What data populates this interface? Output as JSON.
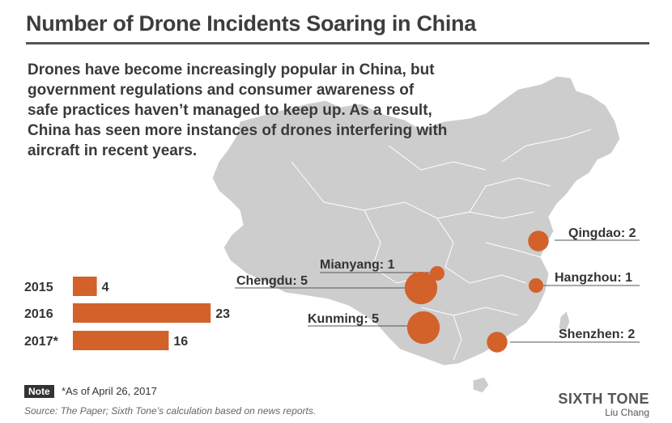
{
  "header": {
    "title": "Number of Drone Incidents Soaring in China",
    "subtitle": "Drones have become increasingly popular in China, but government regulations and consumer awareness of safe practices haven’t managed to keep up. As a result, China has seen more instances of drones interfering with aircraft in recent years."
  },
  "chart_data": [
    {
      "type": "bar",
      "orientation": "horizontal",
      "categories": [
        "2015",
        "2016",
        "2017*"
      ],
      "values": [
        4,
        23,
        16
      ],
      "color": "#D2622A"
    },
    {
      "type": "scatter",
      "kind": "bubble-map",
      "color": "#D2622A",
      "points": [
        {
          "city": "Qingdao",
          "value": 2,
          "label": "Qingdao: 2"
        },
        {
          "city": "Mianyang",
          "value": 1,
          "label": "Mianyang: 1"
        },
        {
          "city": "Chengdu",
          "value": 5,
          "label": "Chengdu: 5"
        },
        {
          "city": "Hangzhou",
          "value": 1,
          "label": "Hangzhou: 1"
        },
        {
          "city": "Kunming",
          "value": 5,
          "label": "Kunming: 5"
        },
        {
          "city": "Shenzhen",
          "value": 2,
          "label": "Shenzhen: 2"
        }
      ]
    }
  ],
  "footer": {
    "note_tag": "Note",
    "note_text": "*As of April 26, 2017",
    "source": "Source: The Paper; Sixth Tone’s calculation based on news reports.",
    "brand": "SIXTH TONE",
    "author": "Liu Chang"
  },
  "colors": {
    "accent": "#D2622A",
    "map_fill": "#CFCFCF",
    "text": "#3A3A3A"
  }
}
